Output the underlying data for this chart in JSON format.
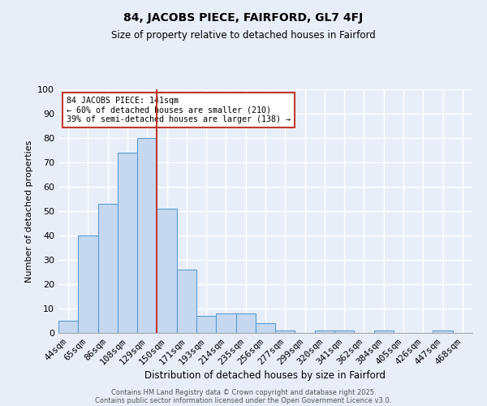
{
  "title": "84, JACOBS PIECE, FAIRFORD, GL7 4FJ",
  "subtitle": "Size of property relative to detached houses in Fairford",
  "xlabel": "Distribution of detached houses by size in Fairford",
  "ylabel": "Number of detached properties",
  "categories": [
    "44sqm",
    "65sqm",
    "86sqm",
    "108sqm",
    "129sqm",
    "150sqm",
    "171sqm",
    "193sqm",
    "214sqm",
    "235sqm",
    "256sqm",
    "277sqm",
    "299sqm",
    "320sqm",
    "341sqm",
    "362sqm",
    "384sqm",
    "405sqm",
    "426sqm",
    "447sqm",
    "468sqm"
  ],
  "values": [
    5,
    40,
    53,
    74,
    80,
    51,
    26,
    7,
    8,
    8,
    4,
    1,
    0,
    1,
    1,
    0,
    1,
    0,
    0,
    1,
    0
  ],
  "bar_color": "#c5d8f0",
  "bar_edge_color": "#5b9bd5",
  "vline_x": 4.5,
  "vline_color": "#c0392b",
  "annotation_text": "84 JACOBS PIECE: 141sqm\n← 60% of detached houses are smaller (210)\n39% of semi-detached houses are larger (138) →",
  "annotation_box_color": "#ffffff",
  "annotation_box_edge_color": "#c0392b",
  "background_color": "#e8eef8",
  "grid_color": "#ffffff",
  "ylim": [
    0,
    100
  ],
  "yticks": [
    0,
    10,
    20,
    30,
    40,
    50,
    60,
    70,
    80,
    90,
    100
  ],
  "footer1": "Contains HM Land Registry data © Crown copyright and database right 2025.",
  "footer2": "Contains public sector information licensed under the Open Government Licence v3.0."
}
